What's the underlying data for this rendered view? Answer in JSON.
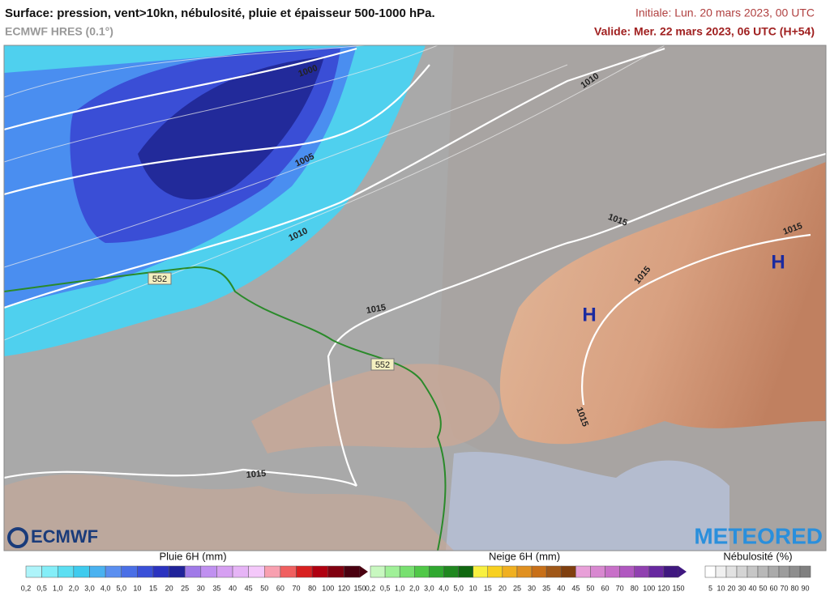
{
  "header": {
    "title": "Surface: pression, vent>10kn, nébulosité, pluie et épaisseur 500-1000 hPa.",
    "model": "ECMWF HRES (0.1°)",
    "initial": "Initiale: Lun. 20 mars 2023, 00 UTC",
    "valid": "Valide: Mer. 22 mars 2023, 06 UTC (H+54)"
  },
  "map": {
    "isobar_labels": [
      "1000",
      "1005",
      "1010",
      "1015",
      "1010",
      "1015",
      "1015",
      "1015",
      "1015",
      "1015"
    ],
    "highs": [
      "H",
      "H"
    ],
    "thickness_labels": [
      "552",
      "552"
    ]
  },
  "logos": {
    "ecmwf": "ECMWF",
    "meteored": "METEORED"
  },
  "legend": {
    "rain": {
      "title": "Pluie 6H (mm)",
      "labels": [
        "0,2",
        "0,5",
        "1,0",
        "2,0",
        "3,0",
        "4,0",
        "5,0",
        "10",
        "15",
        "20",
        "25",
        "30",
        "35",
        "40",
        "45",
        "50",
        "60",
        "70",
        "80",
        "100",
        "120",
        "150"
      ],
      "colors": [
        "#aef4fa",
        "#84eef8",
        "#5cdff2",
        "#3fcbee",
        "#4ab2f0",
        "#5b8ff0",
        "#4a6fe6",
        "#3a50d8",
        "#2b33c0",
        "#20239a",
        "#a07ae8",
        "#c090f0",
        "#d6a0f2",
        "#e6b4f6",
        "#f4c8fa",
        "#f8a0b0",
        "#f06060",
        "#d82020",
        "#b00010",
        "#800010",
        "#4a0010"
      ]
    },
    "snow": {
      "title": "Neige 6H (mm)",
      "labels": [
        "0,2",
        "0,5",
        "1,0",
        "2,0",
        "3,0",
        "4,0",
        "5,0",
        "10",
        "15",
        "20",
        "25",
        "30",
        "35",
        "40",
        "45",
        "50",
        "60",
        "70",
        "80",
        "100",
        "120",
        "150"
      ],
      "colors": [
        "#c8f8c0",
        "#a0f098",
        "#78e070",
        "#50c848",
        "#30a830",
        "#208820",
        "#106810",
        "#f8f040",
        "#f8d020",
        "#f0b020",
        "#e09020",
        "#c87018",
        "#a05818",
        "#804010",
        "#e8a0d8",
        "#d888d0",
        "#c870c8",
        "#b058c0",
        "#9040b0",
        "#6828a0",
        "#401880"
      ]
    },
    "cloud": {
      "title": "Nébulosité (%)",
      "labels": [
        "5",
        "10",
        "20",
        "30",
        "40",
        "50",
        "60",
        "70",
        "80",
        "90"
      ],
      "colors": [
        "#ffffff",
        "#f0f0f0",
        "#e2e2e2",
        "#d4d4d4",
        "#c6c6c6",
        "#b8b8b8",
        "#aaaaaa",
        "#9c9c9c",
        "#8e8e8e",
        "#808080"
      ]
    }
  }
}
